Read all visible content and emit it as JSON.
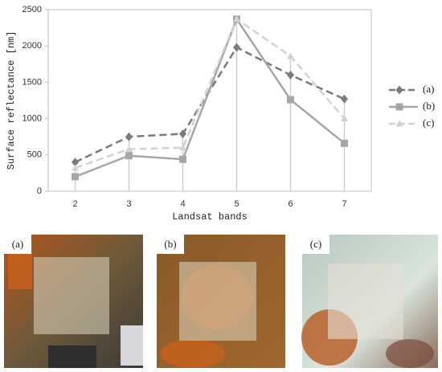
{
  "chart_data": {
    "type": "line",
    "x_label": "Landsat bands",
    "y_label": "Surface reflectance [nm]",
    "categories": [
      "2",
      "3",
      "4",
      "5",
      "6",
      "7"
    ],
    "ylim": [
      0,
      2500
    ],
    "yticks": [
      0,
      500,
      1000,
      1500,
      2000,
      2500
    ],
    "drop_lines": true,
    "legend": "right",
    "series": [
      {
        "name": "(a)",
        "color": "#7a7a7a",
        "marker": "diamond",
        "line_style": "dashed",
        "values": [
          400,
          750,
          790,
          1980,
          1600,
          1270
        ]
      },
      {
        "name": "(b)",
        "color": "#a6a6a6",
        "marker": "square",
        "line_style": "solid",
        "values": [
          200,
          490,
          440,
          2370,
          1260,
          660
        ]
      },
      {
        "name": "(c)",
        "color": "#d2d2d2",
        "marker": "triangle",
        "line_style": "dashed",
        "values": [
          320,
          580,
          600,
          2370,
          1860,
          1000
        ]
      }
    ]
  },
  "images": [
    {
      "label": "(a)"
    },
    {
      "label": "(b)"
    },
    {
      "label": "(c)"
    }
  ]
}
